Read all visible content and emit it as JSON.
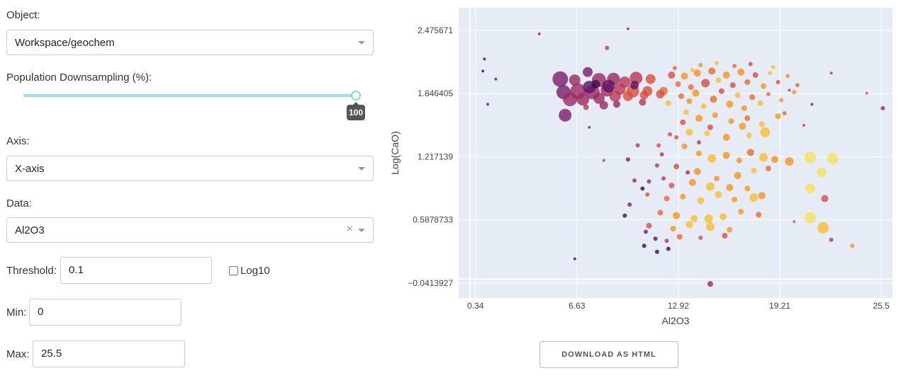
{
  "controls": {
    "object": {
      "label": "Object:",
      "value": "Workspace/geochem"
    },
    "downsampling": {
      "label": "Population Downsampling (%):",
      "value": "100",
      "fraction": 1.0
    },
    "axis": {
      "label": "Axis:",
      "value": "X-axis"
    },
    "data": {
      "label": "Data:",
      "value": "Al2O3",
      "clear_glyph": "×"
    },
    "threshold": {
      "label": "Threshold:",
      "value": "0.1"
    },
    "log10": {
      "label": "Log10",
      "checked": false
    },
    "min": {
      "label": "Min:",
      "value": "0"
    },
    "max": {
      "label": "Max:",
      "value": "25.5"
    }
  },
  "download_button": {
    "label": "DOWNLOAD AS HTML"
  },
  "chart_data": {
    "type": "scatter",
    "xlabel": "Al2O3",
    "ylabel": "Log(CaO)",
    "x_ticks": [
      "0.34",
      "6.63",
      "12.92",
      "19.21",
      "25.5"
    ],
    "y_ticks": [
      "2.475671",
      "1.846405",
      "1.217139",
      "0.5878733",
      "−0.0413927"
    ],
    "xlim": [
      -0.7,
      26.2
    ],
    "ylim": [
      -0.19,
      2.7
    ],
    "background": "#e5ecf6",
    "colorscale": [
      "#0d0887",
      "#46039f",
      "#7201a8",
      "#9c179e",
      "#bd3786",
      "#d8576b",
      "#ed7953",
      "#fb9f3a",
      "#fdca26",
      "#f0f921"
    ],
    "colorscale_note": "inferno-like magma/plasma markers",
    "marker_colors": [
      "#1a1430",
      "#3b0f4e",
      "#5c1260",
      "#7b1d69",
      "#9b2964",
      "#bb3754",
      "#d94e3e",
      "#ee6a2a",
      "#f8931a",
      "#fbbd2e",
      "#f5e25a"
    ],
    "points": [
      [
        5.6,
        1.99,
        11,
        0.3
      ],
      [
        6.5,
        1.98,
        8,
        0.35
      ],
      [
        7.3,
        2.06,
        7,
        0.3
      ],
      [
        8.0,
        1.98,
        10,
        0.35
      ],
      [
        8.9,
        1.99,
        9,
        0.35
      ],
      [
        9.6,
        1.96,
        8,
        0.45
      ],
      [
        10.3,
        2.0,
        9,
        0.5
      ],
      [
        11.2,
        1.99,
        7,
        0.55
      ],
      [
        5.8,
        1.86,
        10,
        0.3
      ],
      [
        6.7,
        1.87,
        11,
        0.35
      ],
      [
        7.6,
        1.86,
        10,
        0.4
      ],
      [
        8.5,
        1.88,
        9,
        0.4
      ],
      [
        9.3,
        1.89,
        8,
        0.5
      ],
      [
        10.1,
        1.87,
        9,
        0.55
      ],
      [
        11.0,
        1.87,
        7,
        0.6
      ],
      [
        12.0,
        1.87,
        6,
        0.65
      ],
      [
        6.2,
        1.79,
        10,
        0.35
      ],
      [
        7.0,
        1.79,
        9,
        0.4
      ],
      [
        8.0,
        1.8,
        8,
        0.4
      ],
      [
        9.0,
        1.82,
        8,
        0.5
      ],
      [
        9.8,
        1.82,
        7,
        0.55
      ],
      [
        10.8,
        1.83,
        6,
        0.6
      ],
      [
        11.8,
        1.84,
        6,
        0.6
      ],
      [
        5.9,
        1.63,
        9,
        0.25
      ],
      [
        7.4,
        1.91,
        9,
        0.15
      ],
      [
        8.6,
        1.92,
        9,
        0.2
      ],
      [
        7.8,
        1.94,
        6,
        0.1
      ],
      [
        10.2,
        1.93,
        6,
        0.2
      ],
      [
        9.1,
        1.74,
        5,
        0.35
      ],
      [
        10.7,
        1.76,
        5,
        0.45
      ],
      [
        7.2,
        1.71,
        4,
        0.5
      ],
      [
        8.3,
        1.73,
        6,
        0.4
      ],
      [
        12.5,
        2.03,
        5,
        0.6
      ],
      [
        12.9,
        1.94,
        4,
        0.7
      ],
      [
        13.3,
        2.02,
        5,
        0.75
      ],
      [
        13.7,
        1.91,
        4,
        0.65
      ],
      [
        14.1,
        2.05,
        5,
        0.8
      ],
      [
        14.6,
        1.95,
        6,
        0.55
      ],
      [
        15.0,
        2.07,
        5,
        0.7
      ],
      [
        15.4,
        1.98,
        4,
        0.85
      ],
      [
        15.9,
        2.03,
        5,
        0.75
      ],
      [
        16.3,
        1.93,
        4,
        0.6
      ],
      [
        16.8,
        2.06,
        5,
        0.8
      ],
      [
        17.2,
        1.96,
        4,
        0.7
      ],
      [
        17.7,
        2.03,
        4,
        0.55
      ],
      [
        18.2,
        1.92,
        4,
        0.75
      ],
      [
        18.6,
        2.05,
        3,
        0.85
      ],
      [
        19.1,
        1.96,
        3,
        0.6
      ],
      [
        13.1,
        1.82,
        4,
        0.65
      ],
      [
        13.6,
        1.77,
        4,
        0.8
      ],
      [
        14.0,
        1.85,
        5,
        0.75
      ],
      [
        14.5,
        1.72,
        4,
        0.85
      ],
      [
        15.1,
        1.79,
        5,
        0.7
      ],
      [
        15.6,
        1.87,
        4,
        0.6
      ],
      [
        16.1,
        1.74,
        5,
        0.8
      ],
      [
        16.6,
        1.83,
        4,
        0.9
      ],
      [
        17.0,
        1.7,
        4,
        0.75
      ],
      [
        17.5,
        1.81,
        4,
        0.65
      ],
      [
        18.0,
        1.75,
        4,
        0.85
      ],
      [
        18.5,
        1.84,
        3,
        0.7
      ],
      [
        19.3,
        1.78,
        3,
        0.8
      ],
      [
        20.1,
        1.86,
        3,
        0.75
      ],
      [
        12.3,
        1.75,
        4,
        0.85
      ],
      [
        13.8,
        2.08,
        3,
        0.9
      ],
      [
        14.3,
        2.13,
        3,
        0.8
      ],
      [
        15.3,
        2.15,
        3,
        0.85
      ],
      [
        16.4,
        2.12,
        3,
        0.7
      ],
      [
        17.4,
        2.14,
        3,
        0.6
      ],
      [
        18.8,
        2.11,
        3,
        0.9
      ],
      [
        19.7,
        2.02,
        3,
        0.8
      ],
      [
        20.3,
        1.93,
        3,
        0.7
      ],
      [
        12.7,
        2.1,
        3,
        0.65
      ],
      [
        13.4,
        1.66,
        4,
        0.85
      ],
      [
        14.2,
        1.6,
        5,
        0.8
      ],
      [
        15.2,
        1.63,
        4,
        0.75
      ],
      [
        16.2,
        1.57,
        4,
        0.8
      ],
      [
        17.2,
        1.6,
        4,
        0.7
      ],
      [
        18.1,
        1.54,
        4,
        0.85
      ],
      [
        19.1,
        1.62,
        4,
        0.8
      ],
      [
        13.6,
        1.46,
        5,
        0.85
      ],
      [
        14.7,
        1.45,
        4,
        0.9
      ],
      [
        15.9,
        1.41,
        5,
        0.8
      ],
      [
        17.3,
        1.43,
        4,
        0.85
      ],
      [
        18.3,
        1.46,
        7,
        0.9
      ],
      [
        16.9,
        1.52,
        5,
        0.75
      ],
      [
        19.5,
        1.65,
        3,
        0.7
      ],
      [
        13.2,
        1.56,
        4,
        0.6
      ],
      [
        14.9,
        1.51,
        4,
        0.55
      ],
      [
        13.3,
        1.32,
        4,
        0.75
      ],
      [
        14.2,
        1.25,
        4,
        0.8
      ],
      [
        15.0,
        1.2,
        6,
        0.85
      ],
      [
        15.9,
        1.23,
        5,
        0.75
      ],
      [
        16.7,
        1.18,
        4,
        0.8
      ],
      [
        17.4,
        1.26,
        5,
        0.7
      ],
      [
        18.2,
        1.21,
        6,
        0.85
      ],
      [
        18.9,
        1.19,
        5,
        0.75
      ],
      [
        19.8,
        1.17,
        6,
        0.8
      ],
      [
        21.1,
        1.21,
        8,
        0.95
      ],
      [
        22.5,
        1.2,
        8,
        1.0
      ],
      [
        12.8,
        1.12,
        4,
        0.6
      ],
      [
        14.1,
        1.07,
        5,
        0.75
      ],
      [
        15.3,
        1.0,
        4,
        0.8
      ],
      [
        16.6,
        1.03,
        5,
        0.75
      ],
      [
        17.6,
        1.08,
        4,
        0.85
      ],
      [
        18.5,
        1.1,
        4,
        0.7
      ],
      [
        21.8,
        1.06,
        7,
        1.0
      ],
      [
        12.5,
        0.93,
        4,
        0.55
      ],
      [
        13.8,
        0.96,
        5,
        0.8
      ],
      [
        14.9,
        0.92,
        6,
        0.85
      ],
      [
        16.1,
        0.91,
        5,
        0.8
      ],
      [
        17.2,
        0.9,
        4,
        0.75
      ],
      [
        21.1,
        0.9,
        7,
        0.95
      ],
      [
        22.0,
        0.8,
        5,
        0.55
      ],
      [
        12.2,
        0.8,
        4,
        0.65
      ],
      [
        13.2,
        0.82,
        4,
        0.8
      ],
      [
        14.3,
        0.78,
        5,
        0.9
      ],
      [
        15.4,
        0.84,
        5,
        0.85
      ],
      [
        16.4,
        0.79,
        4,
        0.8
      ],
      [
        17.6,
        0.81,
        6,
        0.85
      ],
      [
        18.1,
        0.83,
        5,
        0.8
      ],
      [
        11.8,
        0.66,
        4,
        0.7
      ],
      [
        12.8,
        0.63,
        5,
        0.75
      ],
      [
        13.9,
        0.6,
        5,
        0.85
      ],
      [
        14.8,
        0.6,
        6,
        0.85
      ],
      [
        15.7,
        0.62,
        5,
        0.9
      ],
      [
        16.8,
        0.67,
        4,
        0.8
      ],
      [
        17.9,
        0.64,
        4,
        0.65
      ],
      [
        21.1,
        0.61,
        8,
        0.95
      ],
      [
        11.1,
        0.53,
        4,
        0.6
      ],
      [
        12.6,
        0.5,
        4,
        0.75
      ],
      [
        13.6,
        0.54,
        5,
        0.85
      ],
      [
        14.9,
        0.52,
        6,
        0.85
      ],
      [
        16.1,
        0.49,
        4,
        0.8
      ],
      [
        21.9,
        0.51,
        8,
        0.85
      ],
      [
        11.5,
        0.4,
        3,
        0.2
      ],
      [
        12.2,
        0.38,
        3,
        0.5
      ],
      [
        13.0,
        0.42,
        4,
        0.7
      ],
      [
        14.3,
        0.41,
        3,
        0.6
      ],
      [
        15.8,
        0.43,
        4,
        0.55
      ],
      [
        23.7,
        0.33,
        3,
        0.8
      ],
      [
        10.8,
        0.33,
        3,
        0.1
      ],
      [
        11.6,
        0.27,
        3,
        0.05
      ],
      [
        12.3,
        0.3,
        3,
        0.1
      ],
      [
        10.9,
        0.47,
        3,
        0.3
      ],
      [
        14.9,
        -0.05,
        4,
        0.35
      ],
      [
        12.4,
        1.44,
        3,
        0.6
      ],
      [
        11.7,
        1.33,
        3,
        0.55
      ],
      [
        11.6,
        1.13,
        3,
        0.5
      ],
      [
        12.0,
        1.0,
        3,
        0.5
      ],
      [
        11.1,
        0.97,
        3,
        0.4
      ],
      [
        10.4,
        1.33,
        3,
        0.45
      ],
      [
        9.8,
        1.19,
        3,
        0.3
      ],
      [
        10.2,
        0.98,
        3,
        0.35
      ],
      [
        10.7,
        0.9,
        3,
        0.05
      ],
      [
        9.9,
        0.74,
        3,
        0.3
      ],
      [
        11.0,
        0.84,
        3,
        0.55
      ],
      [
        9.6,
        0.63,
        3,
        0.1
      ],
      [
        8.5,
        2.3,
        3,
        0.45
      ],
      [
        4.3,
        2.44,
        2,
        0.35
      ],
      [
        9.8,
        2.49,
        2,
        0.35
      ],
      [
        1.1,
        1.74,
        2,
        0.15
      ],
      [
        0.8,
        2.07,
        2,
        0.05
      ],
      [
        0.9,
        2.19,
        2,
        0.1
      ],
      [
        1.6,
        1.99,
        2,
        0.15
      ],
      [
        6.5,
        0.2,
        2,
        0.1
      ],
      [
        8.3,
        1.18,
        2,
        0.45
      ],
      [
        7.4,
        1.51,
        2,
        0.3
      ],
      [
        25.6,
        1.7,
        3,
        0.35
      ],
      [
        24.6,
        1.85,
        2,
        0.6
      ],
      [
        22.4,
        2.05,
        2,
        0.5
      ],
      [
        21.2,
        1.74,
        2,
        0.3
      ],
      [
        20.7,
        1.53,
        2,
        0.5
      ],
      [
        19.8,
        1.88,
        2,
        0.5
      ],
      [
        20.1,
        0.57,
        2,
        0.55
      ],
      [
        22.4,
        0.39,
        3,
        0.45
      ],
      [
        11.9,
        1.24,
        3,
        0.5
      ],
      [
        13.5,
        1.06,
        3,
        0.4
      ],
      [
        14.2,
        1.36,
        3,
        0.45
      ],
      [
        12.8,
        1.41,
        3,
        0.55
      ]
    ]
  }
}
